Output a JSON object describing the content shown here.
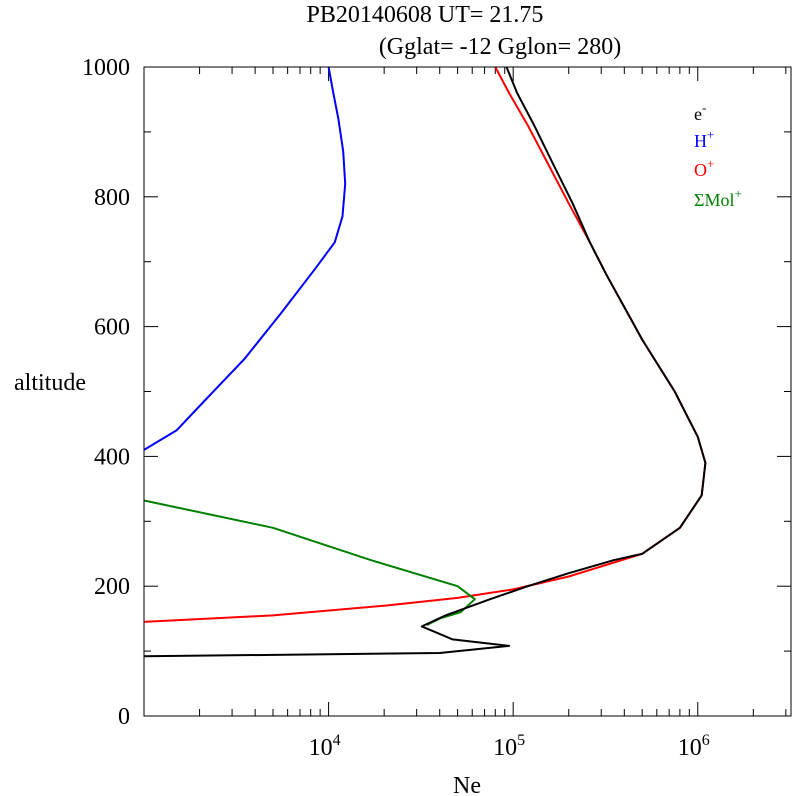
{
  "chart_data": {
    "type": "line",
    "title": "PB20140608   UT=  21.75",
    "subtitle": "(Gglat= -12   Gglon=  280)",
    "xlabel": "Ne",
    "ylabel": "altitude",
    "x_scale": "log",
    "xlim": [
      1000,
      3200000
    ],
    "ylim": [
      0,
      1000
    ],
    "x_ticks": [
      {
        "value": 10000,
        "base": "10",
        "exp": "4"
      },
      {
        "value": 100000,
        "base": "10",
        "exp": "5"
      },
      {
        "value": 1000000,
        "base": "10",
        "exp": "6"
      }
    ],
    "y_ticks": [
      0,
      200,
      400,
      600,
      800,
      1000
    ],
    "legend": {
      "position": "top-right",
      "entries": [
        {
          "base": "e",
          "sup": "-",
          "color": "#000000"
        },
        {
          "base": "H",
          "sup": "+",
          "color": "#0000ff"
        },
        {
          "base": "O",
          "sup": "+",
          "color": "#ff0000"
        },
        {
          "base": "ΣMol",
          "sup": "+",
          "color": "#008000"
        }
      ]
    },
    "series": [
      {
        "color": "#0000ff",
        "points": [
          [
            1000,
            410
          ],
          [
            1500,
            440
          ],
          [
            2200,
            490
          ],
          [
            3500,
            550
          ],
          [
            5500,
            620
          ],
          [
            8500,
            690
          ],
          [
            10800,
            730
          ],
          [
            11900,
            770
          ],
          [
            12300,
            820
          ],
          [
            12000,
            870
          ],
          [
            11300,
            920
          ],
          [
            10600,
            960
          ],
          [
            10000,
            1000
          ]
        ]
      },
      {
        "color": "#ff0000",
        "points": [
          [
            1000,
            145
          ],
          [
            5000,
            155
          ],
          [
            20000,
            170
          ],
          [
            50000,
            182
          ],
          [
            100000,
            195
          ],
          [
            200000,
            215
          ],
          [
            500000,
            250
          ],
          [
            800000,
            290
          ],
          [
            1050000,
            340
          ],
          [
            1100000,
            390
          ],
          [
            1000000,
            430
          ],
          [
            750000,
            500
          ],
          [
            500000,
            580
          ],
          [
            400000,
            630
          ],
          [
            320000,
            680
          ],
          [
            260000,
            730
          ],
          [
            200000,
            790
          ],
          [
            155000,
            850
          ],
          [
            120000,
            910
          ],
          [
            95000,
            960
          ],
          [
            80000,
            1000
          ]
        ]
      },
      {
        "color": "#008000",
        "points": [
          [
            1000,
            332
          ],
          [
            5000,
            290
          ],
          [
            17000,
            240
          ],
          [
            50000,
            200
          ],
          [
            62000,
            180
          ],
          [
            52000,
            160
          ],
          [
            40000,
            150
          ],
          [
            34000,
            140
          ]
        ]
      },
      {
        "color": "#000000",
        "points": [
          [
            1000,
            92
          ],
          [
            40000,
            97
          ],
          [
            95000,
            108
          ],
          [
            47000,
            118
          ],
          [
            32000,
            138
          ],
          [
            43000,
            155
          ],
          [
            75000,
            180
          ],
          [
            120000,
            200
          ],
          [
            200000,
            220
          ],
          [
            350000,
            240
          ],
          [
            500000,
            250
          ],
          [
            800000,
            290
          ],
          [
            1050000,
            340
          ],
          [
            1100000,
            390
          ],
          [
            1000000,
            430
          ],
          [
            750000,
            500
          ],
          [
            500000,
            580
          ],
          [
            400000,
            630
          ],
          [
            320000,
            680
          ],
          [
            260000,
            730
          ],
          [
            210000,
            790
          ],
          [
            165000,
            850
          ],
          [
            130000,
            910
          ],
          [
            105000,
            960
          ],
          [
            92000,
            1000
          ]
        ]
      }
    ]
  }
}
